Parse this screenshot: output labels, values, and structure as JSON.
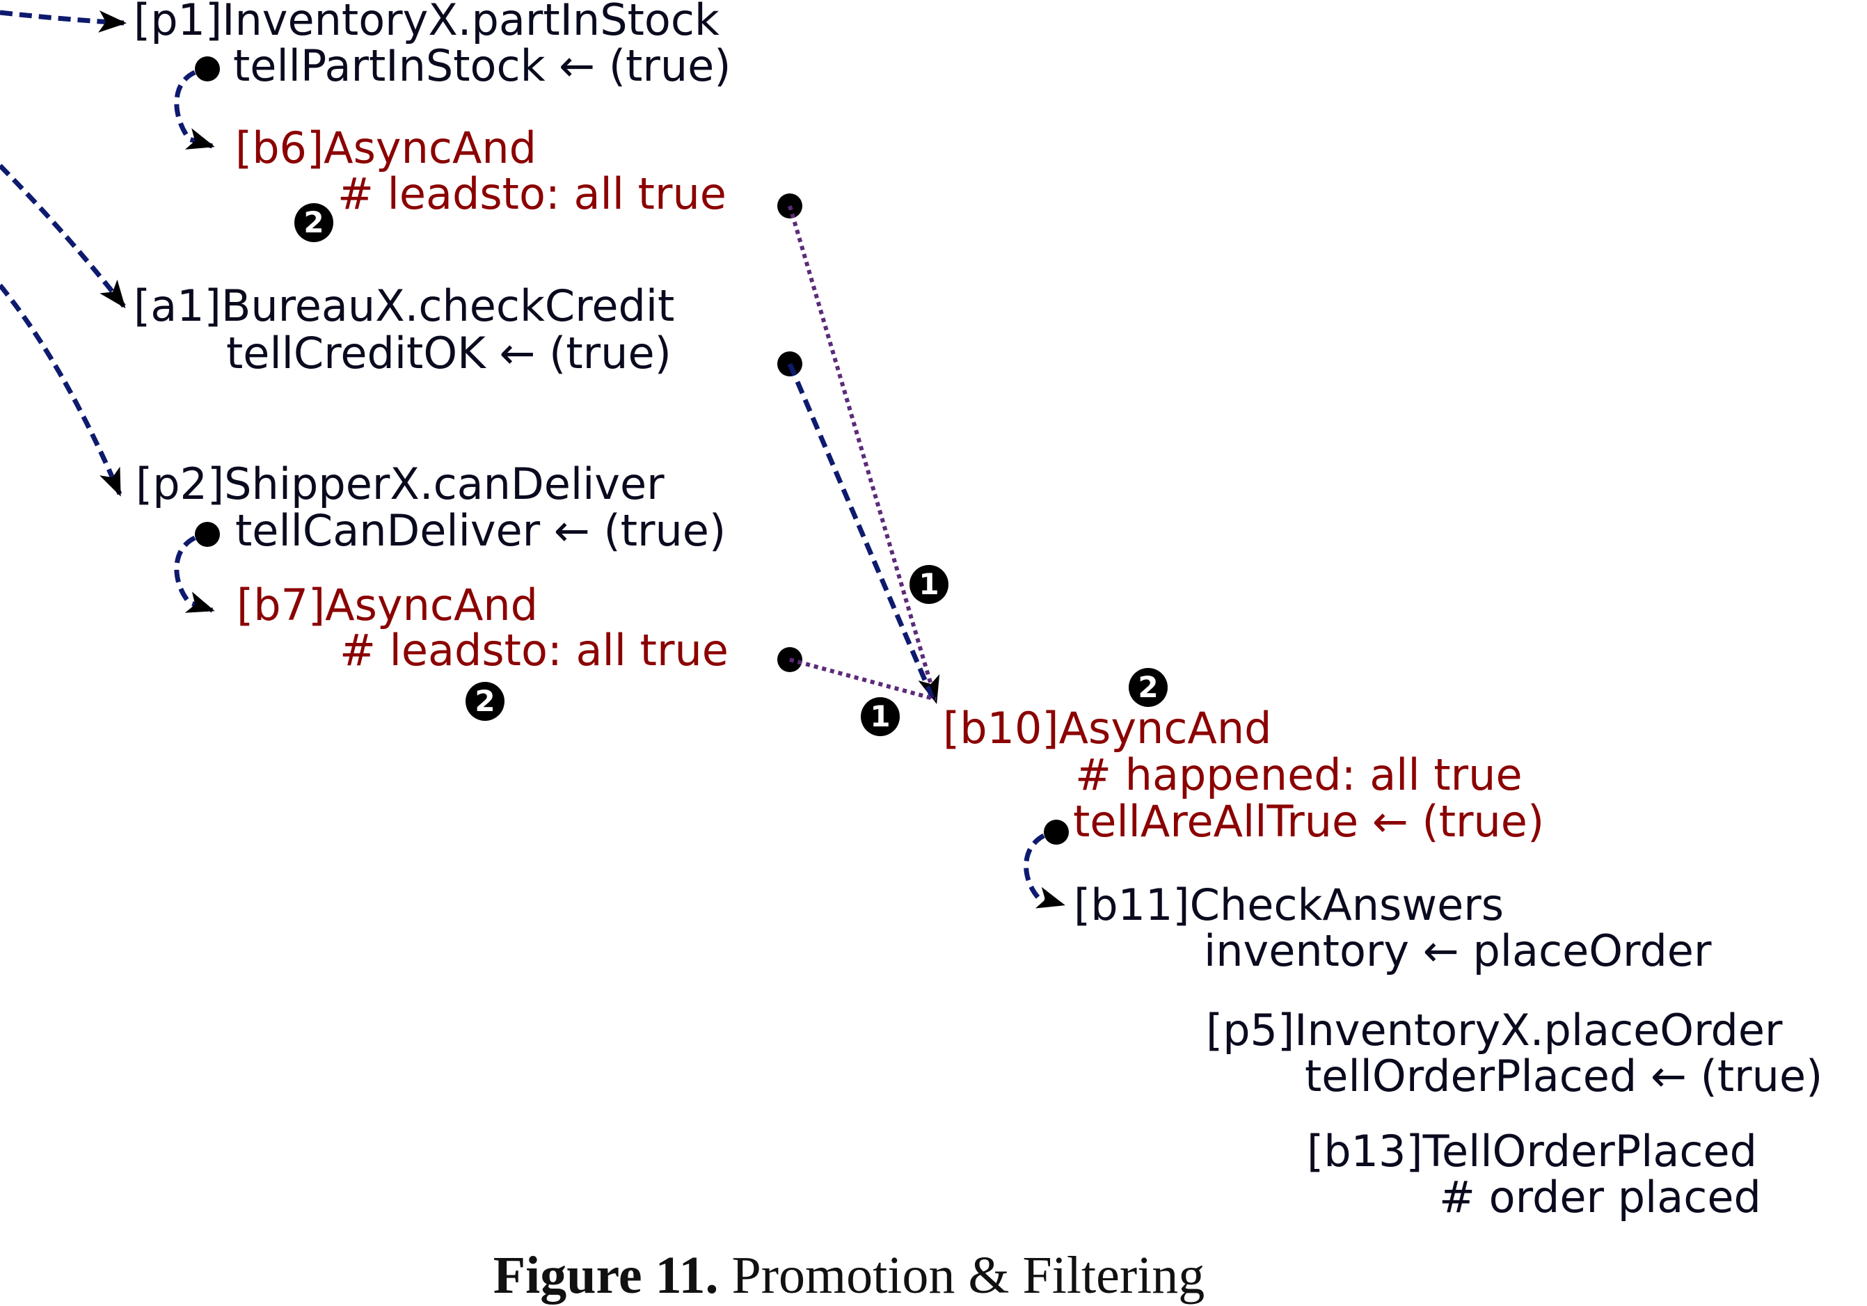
{
  "colors": {
    "text": "#0a0a1f",
    "accent": "#8b0000",
    "edge_dashed": "#0d1a6e",
    "edge_dotted": "#5c2a7a",
    "badge": "#000000"
  },
  "nodes": {
    "p1": {
      "line1": "[p1]InventoryX.partInStock",
      "line2": "tellPartInStock ← (true)"
    },
    "b6": {
      "line1": "[b6]AsyncAnd",
      "line2": "# leadsto: all true"
    },
    "a1": {
      "line1": "[a1]BureauX.checkCredit",
      "line2": "tellCreditOK ← (true)"
    },
    "p2": {
      "line1": "[p2]ShipperX.canDeliver",
      "line2": "tellCanDeliver ← (true)"
    },
    "b7": {
      "line1": "[b7]AsyncAnd",
      "line2": "# leadsto: all true"
    },
    "b10": {
      "line1": "[b10]AsyncAnd",
      "line2": "# happened: all true",
      "line3": "tellAreAllTrue ← (true)"
    },
    "b11": {
      "line1": "[b11]CheckAnswers",
      "line2": "inventory ← placeOrder"
    },
    "p5": {
      "line1": "[p5]InventoryX.placeOrder",
      "line2": "tellOrderPlaced ← (true)"
    },
    "b13": {
      "line1": "[b13]TellOrderPlaced",
      "line2": "# order placed"
    }
  },
  "badges": {
    "one": "1",
    "two": "2"
  },
  "caption": {
    "label": "Figure 11.",
    "text": " Promotion & Filtering"
  }
}
